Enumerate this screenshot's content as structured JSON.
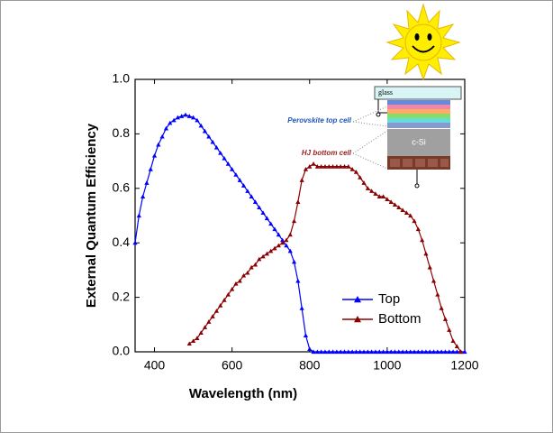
{
  "chart_data": {
    "type": "line",
    "xlabel": "Wavelength (nm)",
    "ylabel": "External Quantum Efficiency",
    "xlim": [
      350,
      1200
    ],
    "ylim": [
      0,
      1
    ],
    "xticks": [
      400,
      600,
      800,
      1000,
      1200
    ],
    "yticks": [
      {
        "value": 0,
        "label": "0.0"
      },
      0.2,
      0.4,
      0.6,
      0.8,
      {
        "value": 1,
        "label": "1.0"
      }
    ],
    "series": [
      {
        "name": "Top",
        "color": "#0000ff",
        "x": [
          350,
          360,
          370,
          380,
          390,
          400,
          410,
          420,
          430,
          440,
          450,
          460,
          470,
          480,
          490,
          500,
          510,
          520,
          530,
          540,
          550,
          560,
          570,
          580,
          590,
          600,
          610,
          620,
          630,
          640,
          650,
          660,
          670,
          680,
          690,
          700,
          710,
          720,
          730,
          740,
          750,
          760,
          770,
          780,
          790,
          800,
          810,
          820,
          830,
          840,
          850,
          860,
          870,
          880,
          890,
          900,
          910,
          920,
          930,
          940,
          950,
          960,
          970,
          980,
          990,
          1000,
          1010,
          1020,
          1030,
          1040,
          1050,
          1060,
          1070,
          1080,
          1090,
          1100,
          1110,
          1120,
          1130,
          1140,
          1150,
          1160,
          1170,
          1180,
          1190,
          1200
        ],
        "values": [
          0.4,
          0.5,
          0.57,
          0.62,
          0.67,
          0.72,
          0.76,
          0.79,
          0.82,
          0.84,
          0.85,
          0.86,
          0.865,
          0.87,
          0.865,
          0.86,
          0.85,
          0.83,
          0.81,
          0.79,
          0.77,
          0.75,
          0.73,
          0.71,
          0.69,
          0.67,
          0.65,
          0.63,
          0.61,
          0.59,
          0.57,
          0.55,
          0.53,
          0.51,
          0.49,
          0.47,
          0.45,
          0.43,
          0.41,
          0.39,
          0.37,
          0.33,
          0.26,
          0.16,
          0.06,
          0.01,
          0,
          0,
          0,
          0,
          0,
          0,
          0,
          0,
          0,
          0,
          0,
          0,
          0,
          0,
          0,
          0,
          0,
          0,
          0,
          0,
          0,
          0,
          0,
          0,
          0,
          0,
          0,
          0,
          0,
          0,
          0,
          0,
          0,
          0,
          0,
          0,
          0,
          0,
          0,
          0
        ]
      },
      {
        "name": "Bottom",
        "color": "#8b0000",
        "x": [
          490,
          500,
          510,
          520,
          530,
          540,
          550,
          560,
          570,
          580,
          590,
          600,
          610,
          620,
          630,
          640,
          650,
          660,
          670,
          680,
          690,
          700,
          710,
          720,
          730,
          740,
          750,
          760,
          770,
          780,
          790,
          800,
          810,
          820,
          830,
          840,
          850,
          860,
          870,
          880,
          890,
          900,
          910,
          920,
          930,
          940,
          950,
          960,
          970,
          980,
          990,
          1000,
          1010,
          1020,
          1030,
          1040,
          1050,
          1060,
          1070,
          1080,
          1090,
          1100,
          1110,
          1120,
          1130,
          1140,
          1150,
          1160,
          1170,
          1180,
          1190
        ],
        "values": [
          0.03,
          0.04,
          0.05,
          0.07,
          0.09,
          0.11,
          0.13,
          0.15,
          0.17,
          0.19,
          0.21,
          0.23,
          0.25,
          0.26,
          0.28,
          0.29,
          0.31,
          0.32,
          0.34,
          0.35,
          0.36,
          0.37,
          0.38,
          0.39,
          0.4,
          0.41,
          0.43,
          0.48,
          0.55,
          0.63,
          0.67,
          0.68,
          0.69,
          0.68,
          0.68,
          0.68,
          0.68,
          0.68,
          0.68,
          0.68,
          0.68,
          0.68,
          0.67,
          0.66,
          0.64,
          0.62,
          0.6,
          0.59,
          0.58,
          0.57,
          0.57,
          0.56,
          0.55,
          0.54,
          0.53,
          0.52,
          0.51,
          0.5,
          0.48,
          0.45,
          0.41,
          0.36,
          0.31,
          0.26,
          0.21,
          0.16,
          0.12,
          0.08,
          0.04,
          0.02,
          0
        ]
      }
    ],
    "annotations": [
      "glass",
      "Perovskite top cell",
      "HJ bottom cell",
      "c-Si"
    ]
  }
}
